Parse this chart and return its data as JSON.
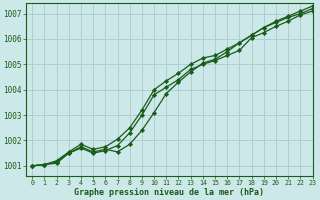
{
  "xlabel": "Graphe pression niveau de la mer (hPa)",
  "bg_color": "#cce8e8",
  "grid_color": "#b0d0d0",
  "line_color": "#1a5c1a",
  "marker_color": "#1a5c1a",
  "xlim": [
    -0.5,
    23
  ],
  "ylim": [
    1000.6,
    1007.4
  ],
  "yticks": [
    1001,
    1002,
    1003,
    1004,
    1005,
    1006,
    1007
  ],
  "xticks": [
    0,
    1,
    2,
    3,
    4,
    5,
    6,
    7,
    8,
    9,
    10,
    11,
    12,
    13,
    14,
    15,
    16,
    17,
    18,
    19,
    20,
    21,
    22,
    23
  ],
  "series": [
    [
      1001.0,
      1001.05,
      1001.1,
      1001.5,
      1001.7,
      1001.5,
      1001.6,
      1001.8,
      1002.3,
      1003.0,
      1003.8,
      1004.1,
      1004.4,
      1004.8,
      1005.0,
      1005.15,
      1005.35,
      1005.55,
      1006.05,
      1006.25,
      1006.5,
      1006.7,
      1006.95,
      1007.1
    ],
    [
      1001.0,
      1001.05,
      1001.15,
      1001.5,
      1001.75,
      1001.55,
      1001.65,
      1001.55,
      1001.85,
      1002.4,
      1003.1,
      1003.85,
      1004.3,
      1004.7,
      1005.05,
      1005.2,
      1005.5,
      1005.85,
      1006.15,
      1006.45,
      1006.65,
      1006.85,
      1007.0,
      1007.2
    ],
    [
      1001.0,
      1001.05,
      1001.2,
      1001.55,
      1001.85,
      1001.65,
      1001.75,
      1002.05,
      1002.5,
      1003.2,
      1004.0,
      1004.35,
      1004.65,
      1005.0,
      1005.25,
      1005.35,
      1005.6,
      1005.85,
      1006.15,
      1006.45,
      1006.7,
      1006.9,
      1007.1,
      1007.3
    ]
  ]
}
